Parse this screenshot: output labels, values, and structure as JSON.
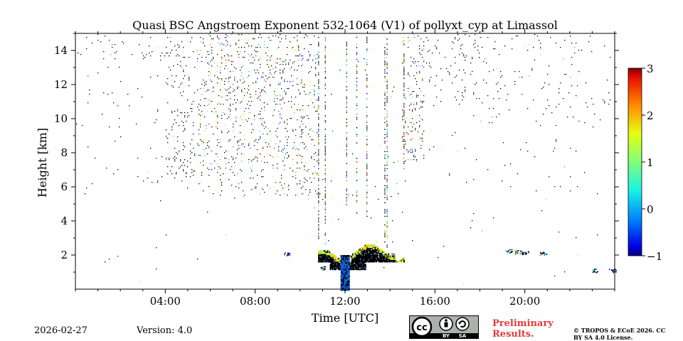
{
  "chart_data": {
    "type": "heatmap",
    "title": "Quasi BSC Angstroem Exponent 532-1064 (V1) of pollyxt_cyp at Limassol",
    "xlabel": "Time [UTC]",
    "ylabel": "Height [km]",
    "xlim_hours": [
      0,
      24
    ],
    "ylim_km": [
      0,
      15
    ],
    "x_ticks": [
      {
        "value": 4,
        "label": "04:00"
      },
      {
        "value": 8,
        "label": "08:00"
      },
      {
        "value": 12,
        "label": "12:00"
      },
      {
        "value": 16,
        "label": "16:00"
      },
      {
        "value": 20,
        "label": "20:00"
      }
    ],
    "y_ticks": [
      {
        "value": 2,
        "label": "2"
      },
      {
        "value": 4,
        "label": "4"
      },
      {
        "value": 6,
        "label": "6"
      },
      {
        "value": 8,
        "label": "8"
      },
      {
        "value": 10,
        "label": "10"
      },
      {
        "value": 12,
        "label": "12"
      },
      {
        "value": 14,
        "label": "14"
      }
    ],
    "colorbar": {
      "range": [
        -1,
        3
      ],
      "colormap": "jet",
      "ticks": [
        {
          "value": -1,
          "label": "−1"
        },
        {
          "value": 0,
          "label": "0"
        },
        {
          "value": 1,
          "label": "1"
        },
        {
          "value": 2,
          "label": "2"
        },
        {
          "value": 3,
          "label": "3"
        }
      ]
    },
    "features": [
      {
        "name": "aerosol-layer",
        "x_range": [
          10.8,
          14.6
        ],
        "y_range": [
          1.0,
          2.7
        ],
        "value": -1
      },
      {
        "name": "noise-high-altitude",
        "x_range": [
          0,
          24
        ],
        "y_range": [
          5.5,
          15
        ],
        "value": null
      }
    ]
  },
  "footer": {
    "date": "2026-02-27",
    "version": "Version: 4.0",
    "preliminary": "Preliminary Results.",
    "copyright": "© TROPOS & ECoE 2026. CC BY SA 4.0 License.",
    "license_badge": {
      "cc": "cc",
      "by": "BY",
      "sa": "SA"
    }
  }
}
